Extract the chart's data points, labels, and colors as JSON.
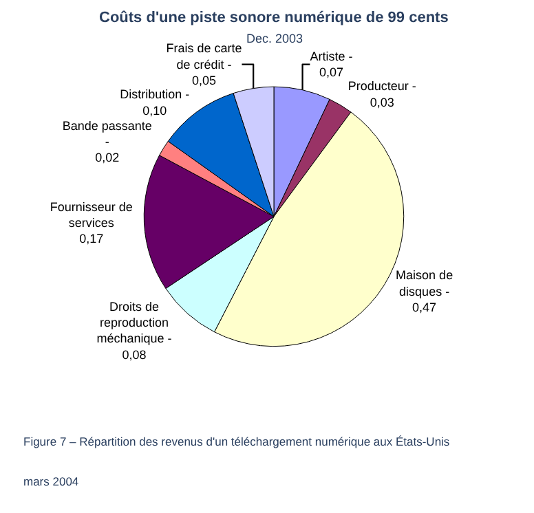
{
  "chart_data": {
    "type": "pie",
    "title": "Coûts d'une piste sonore numérique de 99 cents",
    "subtitle": "Dec. 2003",
    "categories": [
      "Artiste -",
      "Producteur -",
      "Maison de disques -",
      "Droits de reproduction méchanique -",
      "Fournisseur de services",
      "Bande passante -",
      "Distribution -",
      "Frais de carte de crédit -"
    ],
    "values": [
      0.07,
      0.03,
      0.47,
      0.08,
      0.17,
      0.02,
      0.1,
      0.05
    ],
    "value_labels": [
      "0,07",
      "0,03",
      "0,47",
      "0,08",
      "0,17",
      "0,02",
      "0,10",
      "0,05"
    ],
    "colors": [
      "#9999ff",
      "#993366",
      "#ffffcc",
      "#ccffff",
      "#660066",
      "#ff8080",
      "#0066cc",
      "#ccccff"
    ],
    "legend": false,
    "annotations": [
      "Figure 7 – Répartition des revenus d'un téléchargement numérique aux États-Unis",
      "mars 2004"
    ]
  }
}
